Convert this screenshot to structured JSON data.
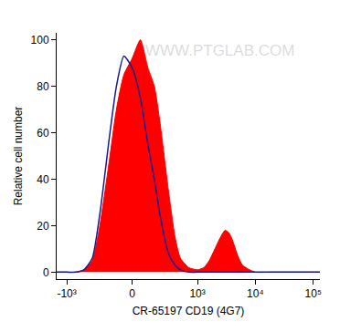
{
  "chart_data": {
    "type": "area",
    "x_label": "CR-65197 CD19 (4G7)",
    "y_label": "Relative cell number",
    "annotations": [
      "WWW.PTGLAB.COM"
    ],
    "x": [
      -1500,
      -1000,
      -700,
      -500,
      -350,
      -250,
      -150,
      -100,
      -50,
      0,
      50,
      100,
      150,
      200,
      300,
      400,
      500,
      700,
      1000,
      1300,
      1600,
      2000,
      2500,
      3000,
      3500,
      4000,
      5000,
      6000,
      8000,
      10000,
      20000,
      130000
    ],
    "series": [
      {
        "type": "area",
        "color": "#ff0000",
        "values": [
          0,
          0,
          0,
          1,
          5,
          20,
          50,
          70,
          85,
          92,
          100,
          88,
          80,
          65,
          35,
          15,
          6,
          2,
          1,
          2,
          5,
          10,
          15,
          18,
          17,
          14,
          7,
          3,
          1,
          0,
          0,
          0
        ]
      },
      {
        "type": "line",
        "color": "#1a1a8c",
        "values": [
          0,
          0,
          0,
          1,
          6,
          25,
          60,
          80,
          93,
          88,
          75,
          55,
          40,
          25,
          8,
          3,
          1,
          0,
          0,
          0,
          0,
          0,
          0,
          0,
          0,
          0,
          0,
          0,
          0,
          0,
          0,
          0
        ]
      }
    ],
    "xlim": [
      -1500,
      130000
    ],
    "xticks": [
      {
        "value": -1000,
        "label": "-10³"
      },
      0,
      {
        "value": 1000,
        "label": "10³"
      },
      {
        "value": 10000,
        "label": "10⁴"
      },
      {
        "value": 100000,
        "label": "10⁵"
      }
    ],
    "ylim": [
      -3,
      103
    ],
    "yticks": [
      0,
      20,
      40,
      60,
      80,
      100
    ],
    "grid": false
  }
}
